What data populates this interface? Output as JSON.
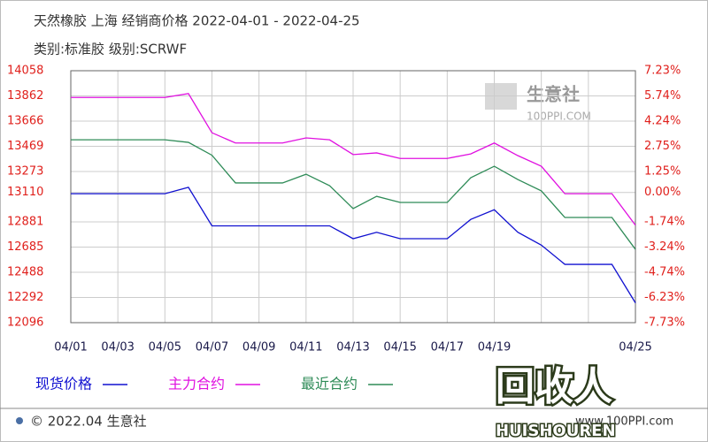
{
  "chart_data": {
    "type": "line",
    "title": "天然橡胶 上海 经销商价格 2022-04-01 - 2022-04-25",
    "subtitle": "类别:标准胶 级别:SCRWF",
    "categories": [
      "04/01",
      null,
      "04/03",
      null,
      "04/05",
      null,
      "04/07",
      null,
      "04/09",
      null,
      "04/11",
      null,
      "04/13",
      null,
      "04/15",
      null,
      "04/17",
      null,
      "04/19",
      null,
      null,
      null,
      null,
      null,
      "04/25"
    ],
    "series": [
      {
        "name": "现货价格",
        "color": "#1010d0",
        "values": [
          13100,
          13100,
          13100,
          13100,
          13100,
          13150,
          12850,
          12850,
          12850,
          12850,
          12850,
          12850,
          12750,
          12800,
          12750,
          12750,
          12750,
          12900,
          12975,
          12800,
          12700,
          12550,
          12550,
          12550,
          12250
        ]
      },
      {
        "name": "主力合约",
        "color": "#e010e0",
        "values": [
          13850,
          13850,
          13850,
          13850,
          13850,
          13880,
          13575,
          13495,
          13495,
          13495,
          13535,
          13520,
          13405,
          13418,
          13375,
          13375,
          13375,
          13410,
          13495,
          13397,
          13314,
          13100,
          13100,
          13100,
          12855
        ]
      },
      {
        "name": "最近合约",
        "color": "#2e8b57",
        "values": [
          13520,
          13520,
          13520,
          13520,
          13520,
          13500,
          13400,
          13184,
          13184,
          13184,
          13252,
          13163,
          12984,
          13080,
          13032,
          13032,
          13032,
          13225,
          13314,
          13211,
          13122,
          12915,
          12915,
          12915,
          12667
        ]
      }
    ],
    "ylim": [
      12096,
      14058
    ],
    "yticks": [
      14058,
      13862,
      13666,
      13469,
      13273,
      13110,
      12881,
      12685,
      12488,
      12292,
      12096
    ],
    "y2lim": [
      -7.73,
      7.23
    ],
    "y2ticks": [
      {
        "value": 7.23,
        "label": "7.23%"
      },
      {
        "value": 5.74,
        "label": "5.74%"
      },
      {
        "value": 4.24,
        "label": "4.24%"
      },
      {
        "value": 2.75,
        "label": "2.75%"
      },
      {
        "value": 1.25,
        "label": "1.25%"
      },
      {
        "value": 0,
        "label": "0.00%"
      },
      {
        "value": -1.74,
        "label": "-1.74%"
      },
      {
        "value": -3.24,
        "label": "-3.24%"
      },
      {
        "value": -4.74,
        "label": "-4.74%"
      },
      {
        "value": -6.23,
        "label": "-6.23%"
      },
      {
        "value": -7.73,
        "label": "-7.73%"
      }
    ],
    "grid": true
  },
  "watermark": {
    "name": "生意社",
    "site": "100PPI.COM"
  },
  "logo": {
    "name": "回收人",
    "site": "HUISHOUREN"
  },
  "footer": {
    "left": "© 2022.04 生意社",
    "right": "www.100PPI.com"
  }
}
